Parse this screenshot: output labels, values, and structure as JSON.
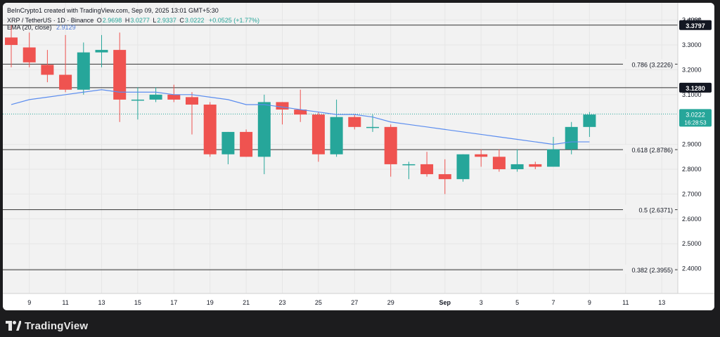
{
  "header": {
    "line1": "BeInCrypto1 created with TradingView.com, Sep 09, 2025 13:01 GMT+5:30",
    "symbol": "XRP / TetherUS · 1D · Binance",
    "o_label": "O",
    "o_value": "2.9698",
    "h_label": "H",
    "h_value": "3.0277",
    "l_label": "L",
    "l_value": "2.9337",
    "c_label": "C",
    "c_value": "3.0222",
    "change": "+0.0525 (+1.77%)",
    "ema_label": "EMA (20, close)",
    "ema_value": "2.9129"
  },
  "footer": {
    "brand": "TradingView",
    "logo_icon": "tradingview-logo-icon"
  },
  "colors": {
    "up": "#26a69a",
    "down": "#ef5350",
    "ema": "#5b8def",
    "level": "#333333"
  },
  "chart_data": {
    "type": "candlestick",
    "currency_label": "USDT",
    "ylim": [
      2.3,
      3.43
    ],
    "y_ticks": [
      "2.4000",
      "2.5000",
      "2.6000",
      "2.7000",
      "2.8000",
      "2.9000",
      "3.1000",
      "3.2000",
      "3.3000",
      "3.4000"
    ],
    "x_tick_labels": [
      {
        "label": "9",
        "day": 1
      },
      {
        "label": "11",
        "day": 3
      },
      {
        "label": "13",
        "day": 5
      },
      {
        "label": "15",
        "day": 7
      },
      {
        "label": "17",
        "day": 9
      },
      {
        "label": "19",
        "day": 11
      },
      {
        "label": "21",
        "day": 13
      },
      {
        "label": "23",
        "day": 15
      },
      {
        "label": "25",
        "day": 17
      },
      {
        "label": "27",
        "day": 19
      },
      {
        "label": "29",
        "day": 21
      },
      {
        "label": "Sep",
        "day": 24
      },
      {
        "label": "3",
        "day": 26
      },
      {
        "label": "5",
        "day": 28
      },
      {
        "label": "7",
        "day": 30
      },
      {
        "label": "9",
        "day": 32
      },
      {
        "label": "11",
        "day": 34
      },
      {
        "label": "13",
        "day": 36
      }
    ],
    "first_day": 0,
    "last_day": 37,
    "candles": [
      {
        "o": 3.33,
        "h": 3.38,
        "l": 3.21,
        "c": 3.3
      },
      {
        "o": 3.29,
        "h": 3.35,
        "l": 3.21,
        "c": 3.23
      },
      {
        "o": 3.22,
        "h": 3.28,
        "l": 3.15,
        "c": 3.18
      },
      {
        "o": 3.18,
        "h": 3.34,
        "l": 3.11,
        "c": 3.12
      },
      {
        "o": 3.12,
        "h": 3.31,
        "l": 3.1,
        "c": 3.27
      },
      {
        "o": 3.27,
        "h": 3.34,
        "l": 3.21,
        "c": 3.28
      },
      {
        "o": 3.28,
        "h": 3.35,
        "l": 2.99,
        "c": 3.08
      },
      {
        "o": 3.08,
        "h": 3.13,
        "l": 3.0,
        "c": 3.08
      },
      {
        "o": 3.08,
        "h": 3.13,
        "l": 3.07,
        "c": 3.1
      },
      {
        "o": 3.1,
        "h": 3.14,
        "l": 3.07,
        "c": 3.08
      },
      {
        "o": 3.09,
        "h": 3.11,
        "l": 2.94,
        "c": 3.06
      },
      {
        "o": 3.06,
        "h": 3.07,
        "l": 2.85,
        "c": 2.86
      },
      {
        "o": 2.86,
        "h": 2.95,
        "l": 2.82,
        "c": 2.95
      },
      {
        "o": 2.95,
        "h": 2.96,
        "l": 2.85,
        "c": 2.85
      },
      {
        "o": 2.85,
        "h": 3.1,
        "l": 2.78,
        "c": 3.07
      },
      {
        "o": 3.07,
        "h": 3.07,
        "l": 2.98,
        "c": 3.04
      },
      {
        "o": 3.04,
        "h": 3.12,
        "l": 2.99,
        "c": 3.02
      },
      {
        "o": 3.02,
        "h": 3.03,
        "l": 2.83,
        "c": 2.86
      },
      {
        "o": 2.86,
        "h": 3.08,
        "l": 2.85,
        "c": 3.01
      },
      {
        "o": 3.01,
        "h": 3.02,
        "l": 2.96,
        "c": 2.97
      },
      {
        "o": 2.97,
        "h": 3.02,
        "l": 2.95,
        "c": 2.97
      },
      {
        "o": 2.97,
        "h": 2.98,
        "l": 2.77,
        "c": 2.82
      },
      {
        "o": 2.82,
        "h": 2.83,
        "l": 2.76,
        "c": 2.82
      },
      {
        "o": 2.82,
        "h": 2.87,
        "l": 2.77,
        "c": 2.78
      },
      {
        "o": 2.78,
        "h": 2.84,
        "l": 2.7,
        "c": 2.76
      },
      {
        "o": 2.76,
        "h": 2.86,
        "l": 2.75,
        "c": 2.86
      },
      {
        "o": 2.86,
        "h": 2.88,
        "l": 2.81,
        "c": 2.85
      },
      {
        "o": 2.85,
        "h": 2.88,
        "l": 2.79,
        "c": 2.8
      },
      {
        "o": 2.8,
        "h": 2.88,
        "l": 2.79,
        "c": 2.82
      },
      {
        "o": 2.82,
        "h": 2.83,
        "l": 2.8,
        "c": 2.81
      },
      {
        "o": 2.81,
        "h": 2.93,
        "l": 2.81,
        "c": 2.88
      },
      {
        "o": 2.88,
        "h": 2.99,
        "l": 2.86,
        "c": 2.97
      },
      {
        "o": 2.97,
        "h": 3.03,
        "l": 2.93,
        "c": 3.02
      }
    ],
    "ema": [
      3.06,
      3.08,
      3.09,
      3.1,
      3.11,
      3.12,
      3.11,
      3.11,
      3.11,
      3.1,
      3.1,
      3.09,
      3.08,
      3.06,
      3.06,
      3.05,
      3.04,
      3.03,
      3.02,
      3.02,
      3.01,
      2.99,
      2.98,
      2.97,
      2.96,
      2.95,
      2.94,
      2.93,
      2.92,
      2.91,
      2.9,
      2.91,
      2.91
    ],
    "levels": [
      {
        "value": 3.3797,
        "label": "3.3797",
        "style": "tag"
      },
      {
        "value": 3.2226,
        "label": "0.786 (3.2226)",
        "style": "text"
      },
      {
        "value": 3.128,
        "label": "3.1280",
        "style": "tag"
      },
      {
        "value": 2.8786,
        "label": "0.618 (2.8786)",
        "style": "text"
      },
      {
        "value": 2.6371,
        "label": "0.5 (2.6371)",
        "style": "text"
      },
      {
        "value": 2.3955,
        "label": "0.382 (2.3955)",
        "style": "text"
      }
    ],
    "price_tag": {
      "value": 3.0222,
      "label": "3.0222",
      "countdown": "16:28:53"
    }
  }
}
